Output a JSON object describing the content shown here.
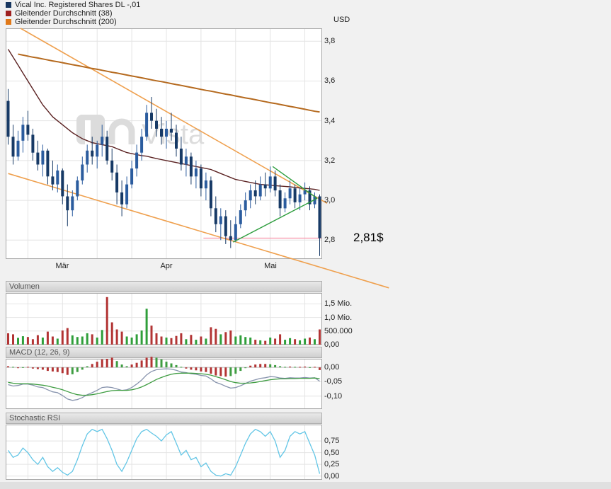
{
  "watermark": "Vista",
  "legend": {
    "items": [
      {
        "label": "Vical Inc. Registered Shares DL -,01",
        "color": "#17365f"
      },
      {
        "label": "Gleitender Durchschnitt (38)",
        "color": "#9e2020"
      },
      {
        "label": "Gleitender Durchschnitt (200)",
        "color": "#e07818"
      }
    ]
  },
  "chart_data": [
    {
      "type": "candlestick",
      "title": "Vical Inc. Registered Shares DL -,01",
      "currency": "USD",
      "ylim": [
        3.865,
        2.705
      ],
      "ytick_values": [
        3.8,
        3.6,
        3.4,
        3.2,
        3.0,
        2.8
      ],
      "ytick_labels": [
        "3,8",
        "3,6",
        "3,4",
        "3,2",
        "3,0",
        "2,8"
      ],
      "x_months": [
        {
          "label": "Mär",
          "day": 11
        },
        {
          "label": "Apr",
          "day": 32
        },
        {
          "label": "Mai",
          "day": 53
        }
      ],
      "vgrid_days": [
        4,
        11,
        18,
        25,
        32,
        39,
        46,
        53,
        60
      ],
      "colors": {
        "candle_up": "#2b5c9e",
        "candle_down": "#173a66",
        "ma38": "#5b2222",
        "ma200": "#b56a1f",
        "trendline": "#efa04e",
        "triangle": "#2f9e3f",
        "price_line": "#f795ab"
      },
      "candles": [
        [
          3.5,
          3.56,
          3.28,
          3.32
        ],
        [
          3.32,
          3.38,
          3.18,
          3.22
        ],
        [
          3.22,
          3.35,
          3.2,
          3.3
        ],
        [
          3.3,
          3.42,
          3.24,
          3.38
        ],
        [
          3.38,
          3.45,
          3.3,
          3.33
        ],
        [
          3.33,
          3.36,
          3.2,
          3.24
        ],
        [
          3.24,
          3.3,
          3.15,
          3.18
        ],
        [
          3.18,
          3.28,
          3.12,
          3.25
        ],
        [
          3.25,
          3.26,
          3.08,
          3.12
        ],
        [
          3.12,
          3.2,
          3.05,
          3.08
        ],
        [
          3.08,
          3.18,
          3.04,
          3.15
        ],
        [
          3.15,
          3.16,
          2.98,
          3.02
        ],
        [
          3.02,
          3.08,
          2.87,
          2.95
        ],
        [
          2.95,
          3.05,
          2.92,
          3.02
        ],
        [
          3.02,
          3.12,
          3.0,
          3.1
        ],
        [
          3.1,
          3.22,
          3.08,
          3.18
        ],
        [
          3.18,
          3.28,
          3.14,
          3.25
        ],
        [
          3.25,
          3.32,
          3.18,
          3.22
        ],
        [
          3.22,
          3.3,
          3.16,
          3.28
        ],
        [
          3.28,
          3.38,
          3.22,
          3.32
        ],
        [
          3.32,
          3.35,
          3.18,
          3.2
        ],
        [
          3.2,
          3.26,
          3.1,
          3.14
        ],
        [
          3.14,
          3.18,
          2.98,
          3.04
        ],
        [
          3.04,
          3.1,
          2.92,
          2.98
        ],
        [
          2.98,
          3.12,
          2.96,
          3.08
        ],
        [
          3.08,
          3.2,
          3.06,
          3.16
        ],
        [
          3.16,
          3.28,
          3.12,
          3.24
        ],
        [
          3.24,
          3.36,
          3.2,
          3.32
        ],
        [
          3.32,
          3.48,
          3.3,
          3.44
        ],
        [
          3.44,
          3.52,
          3.36,
          3.4
        ],
        [
          3.4,
          3.46,
          3.32,
          3.36
        ],
        [
          3.36,
          3.42,
          3.28,
          3.32
        ],
        [
          3.32,
          3.4,
          3.26,
          3.36
        ],
        [
          3.36,
          3.44,
          3.3,
          3.34
        ],
        [
          3.34,
          3.38,
          3.22,
          3.26
        ],
        [
          3.26,
          3.32,
          3.15,
          3.18
        ],
        [
          3.18,
          3.26,
          3.12,
          3.22
        ],
        [
          3.22,
          3.24,
          3.08,
          3.12
        ],
        [
          3.12,
          3.2,
          3.06,
          3.16
        ],
        [
          3.16,
          3.18,
          3.02,
          3.06
        ],
        [
          3.06,
          3.14,
          3.0,
          3.1
        ],
        [
          3.1,
          3.12,
          2.92,
          2.96
        ],
        [
          2.96,
          3.02,
          2.84,
          2.88
        ],
        [
          2.88,
          2.96,
          2.8,
          2.92
        ],
        [
          2.92,
          2.95,
          2.78,
          2.82
        ],
        [
          2.82,
          2.9,
          2.76,
          2.8
        ],
        [
          2.8,
          2.92,
          2.79,
          2.88
        ],
        [
          2.88,
          2.98,
          2.86,
          2.95
        ],
        [
          2.95,
          3.04,
          2.92,
          3.0
        ],
        [
          3.0,
          3.08,
          2.96,
          3.05
        ],
        [
          3.05,
          3.1,
          2.98,
          3.02
        ],
        [
          3.02,
          3.12,
          3.0,
          3.08
        ],
        [
          3.08,
          3.14,
          3.02,
          3.06
        ],
        [
          3.06,
          3.17,
          3.04,
          3.12
        ],
        [
          3.12,
          3.15,
          3.02,
          3.05
        ],
        [
          3.05,
          3.08,
          2.92,
          2.96
        ],
        [
          2.96,
          3.04,
          2.94,
          3.01
        ],
        [
          3.01,
          3.1,
          2.98,
          3.06
        ],
        [
          3.06,
          3.08,
          2.96,
          2.99
        ],
        [
          2.99,
          3.06,
          2.95,
          3.03
        ],
        [
          3.03,
          3.09,
          3.0,
          3.05
        ],
        [
          3.05,
          3.07,
          2.95,
          2.98
        ],
        [
          2.98,
          3.04,
          2.96,
          3.02
        ],
        [
          3.02,
          3.03,
          2.72,
          2.81
        ]
      ],
      "ma38": [
        3.76,
        3.72,
        3.68,
        3.64,
        3.6,
        3.56,
        3.52,
        3.48,
        3.45,
        3.42,
        3.4,
        3.38,
        3.36,
        3.34,
        3.325,
        3.31,
        3.3,
        3.29,
        3.285,
        3.28,
        3.275,
        3.27,
        3.26,
        3.25,
        3.24,
        3.235,
        3.23,
        3.225,
        3.222,
        3.216,
        3.21,
        3.205,
        3.2,
        3.195,
        3.19,
        3.185,
        3.18,
        3.175,
        3.17,
        3.165,
        3.16,
        3.155,
        3.145,
        3.135,
        3.125,
        3.115,
        3.105,
        3.1,
        3.095,
        3.09,
        3.085,
        3.08,
        3.078,
        3.076,
        3.074,
        3.072,
        3.07,
        3.068,
        3.065,
        3.062,
        3.06,
        3.058,
        3.055,
        3.05
      ],
      "ma200": [
        null,
        null,
        3.735,
        3.73,
        3.725,
        3.72,
        3.716,
        3.711,
        3.706,
        3.701,
        3.697,
        3.692,
        3.687,
        3.682,
        3.678,
        3.673,
        3.668,
        3.663,
        3.659,
        3.654,
        3.649,
        3.644,
        3.64,
        3.635,
        3.63,
        3.625,
        3.621,
        3.616,
        3.611,
        3.606,
        3.601,
        3.597,
        3.592,
        3.587,
        3.582,
        3.578,
        3.573,
        3.568,
        3.563,
        3.558,
        3.553,
        3.549,
        3.544,
        3.539,
        3.534,
        3.53,
        3.525,
        3.52,
        3.515,
        3.511,
        3.506,
        3.501,
        3.496,
        3.491,
        3.487,
        3.482,
        3.477,
        3.472,
        3.468,
        3.463,
        3.458,
        3.453,
        3.448,
        3.444
      ],
      "trendlines": [
        {
          "from": [
            2.5,
            3.865
          ],
          "to": [
            64.5,
            2.985
          ]
        },
        {
          "from": [
            0,
            3.135
          ],
          "to": [
            77,
            2.56
          ]
        }
      ],
      "triangle": [
        {
          "from": [
            45.5,
            2.79
          ],
          "to": [
            62.5,
            3.01
          ]
        },
        {
          "from": [
            53.5,
            3.17
          ],
          "to": [
            62.5,
            3.01
          ]
        }
      ],
      "price_line": {
        "value": 2.81,
        "label": "2,81$",
        "from_day": 39.5
      }
    },
    {
      "type": "bar",
      "title": "Volumen",
      "ylim": [
        1900000,
        0
      ],
      "ytick_values": [
        1500000,
        1000000,
        500000,
        0
      ],
      "ytick_labels": [
        "1,5 Mio.",
        "1,0 Mio.",
        "500.000",
        "0,00"
      ],
      "colors": {
        "up": "#2f9e3a",
        "down": "#b23434"
      },
      "values": [
        420000,
        380000,
        250000,
        310000,
        280000,
        200000,
        350000,
        260000,
        480000,
        300000,
        220000,
        520000,
        610000,
        340000,
        280000,
        300000,
        420000,
        380000,
        260000,
        540000,
        1750000,
        820000,
        560000,
        480000,
        300000,
        260000,
        380000,
        520000,
        1320000,
        700000,
        420000,
        300000,
        260000,
        240000,
        320000,
        420000,
        200000,
        360000,
        180000,
        300000,
        220000,
        640000,
        580000,
        380000,
        460000,
        520000,
        300000,
        340000,
        280000,
        260000,
        180000,
        160000,
        140000,
        260000,
        220000,
        380000,
        180000,
        240000,
        200000,
        160000,
        220000,
        260000,
        200000,
        560000
      ]
    },
    {
      "type": "macd",
      "title": "MACD (12, 26, 9)",
      "ylim": [
        0.03,
        -0.145
      ],
      "ytick_values": [
        0,
        -0.05,
        -0.1
      ],
      "ytick_labels": [
        "0,00",
        "-0,05",
        "-0,10"
      ],
      "colors": {
        "macd": "#8793ad",
        "signal": "#3f9d42",
        "hist_rising": "#b23434",
        "hist_falling": "#3f9d42"
      },
      "macd": [
        -0.06,
        -0.065,
        -0.063,
        -0.058,
        -0.058,
        -0.062,
        -0.068,
        -0.07,
        -0.078,
        -0.085,
        -0.088,
        -0.098,
        -0.11,
        -0.115,
        -0.112,
        -0.105,
        -0.095,
        -0.088,
        -0.08,
        -0.07,
        -0.068,
        -0.07,
        -0.075,
        -0.08,
        -0.078,
        -0.07,
        -0.058,
        -0.044,
        -0.026,
        -0.014,
        -0.008,
        -0.006,
        -0.005,
        -0.006,
        -0.01,
        -0.016,
        -0.018,
        -0.022,
        -0.024,
        -0.028,
        -0.03,
        -0.04,
        -0.052,
        -0.058,
        -0.066,
        -0.072,
        -0.07,
        -0.064,
        -0.056,
        -0.048,
        -0.043,
        -0.038,
        -0.036,
        -0.032,
        -0.033,
        -0.037,
        -0.038,
        -0.036,
        -0.037,
        -0.037,
        -0.035,
        -0.037,
        -0.036,
        -0.048
      ],
      "signal": [
        -0.052,
        -0.055,
        -0.057,
        -0.057,
        -0.057,
        -0.058,
        -0.06,
        -0.062,
        -0.065,
        -0.069,
        -0.073,
        -0.078,
        -0.084,
        -0.09,
        -0.095,
        -0.097,
        -0.097,
        -0.095,
        -0.092,
        -0.088,
        -0.084,
        -0.081,
        -0.08,
        -0.08,
        -0.08,
        -0.078,
        -0.074,
        -0.068,
        -0.06,
        -0.051,
        -0.042,
        -0.035,
        -0.029,
        -0.024,
        -0.021,
        -0.02,
        -0.02,
        -0.02,
        -0.021,
        -0.022,
        -0.024,
        -0.027,
        -0.032,
        -0.037,
        -0.043,
        -0.049,
        -0.053,
        -0.055,
        -0.055,
        -0.054,
        -0.052,
        -0.049,
        -0.046,
        -0.043,
        -0.041,
        -0.04,
        -0.04,
        -0.039,
        -0.039,
        -0.038,
        -0.038,
        -0.038,
        -0.037,
        -0.039
      ],
      "histogram": [
        0.004,
        0.002,
        -0.002,
        0.001,
        0.002,
        -0.004,
        -0.006,
        -0.008,
        -0.012,
        -0.014,
        -0.016,
        -0.02,
        -0.026,
        -0.024,
        -0.016,
        -0.008,
        0.004,
        0.012,
        0.02,
        0.028,
        0.03,
        0.034,
        0.022,
        0.01,
        0.004,
        0.01,
        0.016,
        0.024,
        0.034,
        0.037,
        0.034,
        0.028,
        0.02,
        0.014,
        0.008,
        0.002,
        -0.004,
        -0.008,
        -0.01,
        -0.014,
        -0.016,
        -0.022,
        -0.028,
        -0.03,
        -0.032,
        -0.03,
        -0.022,
        -0.012,
        -0.002,
        0.006,
        0.01,
        0.012,
        0.012,
        0.011,
        0.008,
        0.004,
        0.002,
        0.003,
        0.002,
        0.002,
        0.003,
        0.001,
        0.002,
        -0.009
      ]
    },
    {
      "type": "line",
      "title": "Stochastic RSI",
      "ylim": [
        1.1,
        -0.08
      ],
      "ytick_values": [
        0.75,
        0.5,
        0.25,
        0
      ],
      "ytick_labels": [
        "0,75",
        "0,50",
        "0,25",
        "0,00"
      ],
      "colors": {
        "line": "#63c6e6"
      },
      "values": [
        0.55,
        0.4,
        0.45,
        0.6,
        0.5,
        0.35,
        0.25,
        0.4,
        0.2,
        0.1,
        0.18,
        0.08,
        0.02,
        0.1,
        0.35,
        0.65,
        0.9,
        1.0,
        0.95,
        1.0,
        0.8,
        0.55,
        0.25,
        0.1,
        0.3,
        0.55,
        0.8,
        0.95,
        1.0,
        0.92,
        0.85,
        0.75,
        0.88,
        0.95,
        0.7,
        0.45,
        0.55,
        0.35,
        0.4,
        0.2,
        0.28,
        0.1,
        0.02,
        0.0,
        0.05,
        0.02,
        0.2,
        0.45,
        0.7,
        0.9,
        1.0,
        0.95,
        0.85,
        0.95,
        0.75,
        0.4,
        0.55,
        0.85,
        0.95,
        0.9,
        0.95,
        0.7,
        0.45,
        0.05
      ]
    }
  ]
}
